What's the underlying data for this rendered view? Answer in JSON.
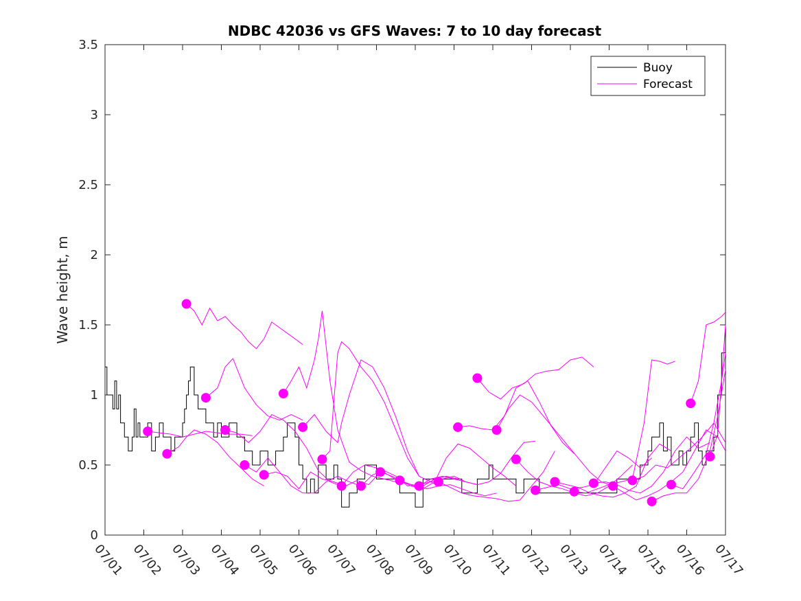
{
  "chart_data": {
    "type": "line",
    "title": "NDBC 42036 vs GFS Waves: 7 to 10 day forecast",
    "xlabel": "",
    "ylabel": "Wave height, m",
    "ylim": [
      0,
      3.5
    ],
    "yticks": [
      "0",
      "0.5",
      "1",
      "1.5",
      "2",
      "2.5",
      "3",
      "3.5"
    ],
    "xlim_days": [
      1,
      17
    ],
    "xticks": [
      "07/01",
      "07/02",
      "07/03",
      "07/04",
      "07/05",
      "07/06",
      "07/07",
      "07/08",
      "07/09",
      "07/10",
      "07/11",
      "07/12",
      "07/13",
      "07/14",
      "07/15",
      "07/16",
      "07/17"
    ],
    "legend": {
      "position": "top-right",
      "entries": [
        {
          "label": "Buoy",
          "color": "#000000"
        },
        {
          "label": "Forecast",
          "color": "#ff00ff"
        }
      ]
    },
    "colors": {
      "buoy": "#000000",
      "forecast": "#ff00ff"
    },
    "buoy": {
      "name": "Buoy",
      "x": [
        1.0,
        1.05,
        1.1,
        1.2,
        1.25,
        1.3,
        1.35,
        1.4,
        1.5,
        1.6,
        1.7,
        1.75,
        1.8,
        1.85,
        1.9,
        2.0,
        2.1,
        2.2,
        2.3,
        2.4,
        2.5,
        2.6,
        2.7,
        2.8,
        2.9,
        3.0,
        3.05,
        3.1,
        3.15,
        3.2,
        3.3,
        3.4,
        3.5,
        3.6,
        3.7,
        3.8,
        3.9,
        4.0,
        4.2,
        4.4,
        4.6,
        4.8,
        5.0,
        5.2,
        5.4,
        5.6,
        5.7,
        5.8,
        5.9,
        6.0,
        6.1,
        6.2,
        6.3,
        6.4,
        6.5,
        6.6,
        6.7,
        6.8,
        6.9,
        7.0,
        7.1,
        7.2,
        7.3,
        7.4,
        7.5,
        7.6,
        7.7,
        7.8,
        8.0,
        8.2,
        8.4,
        8.6,
        8.8,
        9.0,
        9.2,
        9.4,
        9.6,
        9.8,
        10.0,
        10.2,
        10.4,
        10.6,
        10.8,
        10.9,
        11.0,
        11.2,
        11.4,
        11.6,
        11.8,
        12.0,
        12.2,
        12.4,
        12.6,
        12.8,
        13.0,
        13.2,
        13.4,
        13.6,
        13.8,
        14.0,
        14.2,
        14.4,
        14.6,
        14.8,
        15.0,
        15.1,
        15.2,
        15.3,
        15.4,
        15.5,
        15.6,
        15.7,
        15.8,
        15.9,
        16.0,
        16.1,
        16.2,
        16.3,
        16.4,
        16.5,
        16.6,
        16.7,
        16.8,
        16.9,
        17.0
      ],
      "y": [
        1.2,
        1.0,
        1.0,
        0.9,
        1.1,
        0.9,
        1.0,
        0.8,
        0.7,
        0.6,
        0.7,
        0.9,
        0.7,
        0.8,
        0.7,
        0.7,
        0.8,
        0.6,
        0.7,
        0.8,
        0.7,
        0.7,
        0.6,
        0.7,
        0.7,
        0.8,
        0.9,
        1.0,
        1.1,
        1.2,
        1.0,
        0.9,
        0.9,
        0.8,
        0.8,
        0.7,
        0.8,
        0.7,
        0.8,
        0.7,
        0.6,
        0.5,
        0.6,
        0.5,
        0.6,
        0.7,
        0.8,
        0.8,
        0.7,
        0.5,
        0.4,
        0.3,
        0.4,
        0.3,
        0.5,
        0.5,
        0.4,
        0.4,
        0.5,
        0.4,
        0.2,
        0.2,
        0.3,
        0.3,
        0.4,
        0.4,
        0.5,
        0.5,
        0.4,
        0.4,
        0.4,
        0.3,
        0.3,
        0.2,
        0.4,
        0.4,
        0.4,
        0.4,
        0.4,
        0.3,
        0.3,
        0.4,
        0.4,
        0.5,
        0.4,
        0.4,
        0.4,
        0.3,
        0.4,
        0.4,
        0.3,
        0.3,
        0.3,
        0.3,
        0.3,
        0.3,
        0.3,
        0.3,
        0.3,
        0.3,
        0.4,
        0.4,
        0.4,
        0.5,
        0.6,
        0.7,
        0.7,
        0.8,
        0.6,
        0.7,
        0.5,
        0.5,
        0.6,
        0.5,
        0.6,
        0.7,
        0.8,
        0.6,
        0.5,
        0.6,
        0.6,
        0.7,
        1.0,
        1.3,
        1.5
      ]
    },
    "forecast_series": [
      {
        "x": [
          2.1,
          2.4,
          2.7,
          3.0,
          3.3,
          3.6,
          3.9,
          4.2,
          4.5,
          4.8
        ],
        "y": [
          0.74,
          0.73,
          0.72,
          0.7,
          0.72,
          0.74,
          0.73,
          0.72,
          0.72,
          0.71
        ]
      },
      {
        "x": [
          2.6,
          2.9,
          3.1,
          3.3,
          3.6,
          3.9,
          4.2,
          4.5,
          4.8,
          5.1
        ],
        "y": [
          0.58,
          0.63,
          0.7,
          0.75,
          0.72,
          0.66,
          0.56,
          0.48,
          0.4,
          0.35
        ]
      },
      {
        "x": [
          3.1,
          3.3,
          3.5,
          3.7,
          3.9,
          4.1,
          4.3,
          4.5,
          4.7,
          4.9,
          5.1,
          5.3,
          5.5,
          5.7,
          5.9,
          6.1
        ],
        "y": [
          1.65,
          1.6,
          1.5,
          1.62,
          1.53,
          1.56,
          1.5,
          1.45,
          1.38,
          1.33,
          1.4,
          1.52,
          1.48,
          1.44,
          1.4,
          1.36
        ]
      },
      {
        "x": [
          3.6,
          3.9,
          4.1,
          4.3,
          4.6,
          4.9,
          5.2,
          5.5,
          5.8,
          6.1
        ],
        "y": [
          0.98,
          1.05,
          1.2,
          1.26,
          1.05,
          0.93,
          0.85,
          0.82,
          0.86,
          0.82
        ]
      },
      {
        "x": [
          4.1,
          4.4,
          4.7,
          5.0,
          5.3,
          5.6,
          5.9,
          6.2,
          6.5,
          6.8,
          7.1
        ],
        "y": [
          0.75,
          0.73,
          0.66,
          0.74,
          0.86,
          0.82,
          0.74,
          0.62,
          0.46,
          0.38,
          0.35
        ]
      },
      {
        "x": [
          4.6,
          4.9,
          5.2,
          5.5,
          5.8,
          6.1,
          6.4,
          6.7,
          7.0,
          7.3,
          7.6
        ],
        "y": [
          0.5,
          0.45,
          0.55,
          0.45,
          0.35,
          0.3,
          0.3,
          0.38,
          0.42,
          0.38,
          0.35
        ]
      },
      {
        "x": [
          5.1,
          5.4,
          5.7,
          6.0,
          6.3,
          6.6,
          6.9,
          7.2,
          7.5,
          7.8,
          8.1
        ],
        "y": [
          0.43,
          0.45,
          0.42,
          0.33,
          0.45,
          0.4,
          0.38,
          0.35,
          0.39,
          0.36,
          0.45
        ]
      },
      {
        "x": [
          5.6,
          5.8,
          6.0,
          6.2,
          6.4,
          6.5,
          6.6,
          6.8,
          7.0,
          7.3,
          7.6,
          7.9,
          8.2,
          8.5
        ],
        "y": [
          1.01,
          1.1,
          1.2,
          1.05,
          1.25,
          1.4,
          1.6,
          1.1,
          0.75,
          0.52,
          0.46,
          0.42,
          0.4,
          0.38
        ]
      },
      {
        "x": [
          6.1,
          6.4,
          6.7,
          7.0,
          7.1,
          7.3,
          7.6,
          7.9,
          8.2,
          8.5,
          8.8,
          9.1
        ],
        "y": [
          0.77,
          0.86,
          0.74,
          0.66,
          0.8,
          1.0,
          1.25,
          1.2,
          1.05,
          0.84,
          0.6,
          0.42
        ]
      },
      {
        "x": [
          6.6,
          6.8,
          7.0,
          7.1,
          7.3,
          7.6,
          7.9,
          8.2,
          8.5,
          8.8,
          9.1,
          9.4,
          9.6
        ],
        "y": [
          0.54,
          0.6,
          1.3,
          1.38,
          1.33,
          1.2,
          1.1,
          0.95,
          0.75,
          0.55,
          0.42,
          0.38,
          0.35
        ]
      },
      {
        "x": [
          7.1,
          7.4,
          7.7,
          8.0,
          8.3,
          8.6,
          8.9,
          9.2,
          9.5,
          9.8,
          10.1
        ],
        "y": [
          0.35,
          0.45,
          0.5,
          0.48,
          0.43,
          0.38,
          0.36,
          0.35,
          0.4,
          0.42,
          0.4
        ]
      },
      {
        "x": [
          7.6,
          7.9,
          8.2,
          8.5,
          8.8,
          9.1,
          9.4,
          9.7,
          10.0,
          10.3,
          10.6
        ],
        "y": [
          0.35,
          0.43,
          0.46,
          0.42,
          0.35,
          0.36,
          0.38,
          0.4,
          0.42,
          0.38,
          0.36
        ]
      },
      {
        "x": [
          8.1,
          8.4,
          8.7,
          9.0,
          9.3,
          9.6,
          9.9,
          10.2,
          10.5,
          10.8,
          11.1
        ],
        "y": [
          0.45,
          0.42,
          0.38,
          0.35,
          0.33,
          0.35,
          0.36,
          0.33,
          0.3,
          0.28,
          0.3
        ]
      },
      {
        "x": [
          8.6,
          8.9,
          9.2,
          9.5,
          9.8,
          10.1,
          10.4,
          10.7,
          11.0,
          11.3,
          11.6
        ],
        "y": [
          0.39,
          0.35,
          0.33,
          0.38,
          0.55,
          0.65,
          0.62,
          0.55,
          0.48,
          0.42,
          0.35
        ]
      },
      {
        "x": [
          9.1,
          9.4,
          9.7,
          10.0,
          10.3,
          10.6,
          10.9,
          11.2,
          11.5,
          11.8,
          12.1
        ],
        "y": [
          0.35,
          0.4,
          0.42,
          0.4,
          0.38,
          0.36,
          0.38,
          0.44,
          0.56,
          0.66,
          0.67
        ]
      },
      {
        "x": [
          9.6,
          9.9,
          10.2,
          10.5,
          10.8,
          11.1,
          11.4,
          11.7,
          12.0,
          12.3,
          12.6
        ],
        "y": [
          0.38,
          0.34,
          0.3,
          0.28,
          0.27,
          0.26,
          0.24,
          0.25,
          0.35,
          0.45,
          0.6
        ]
      },
      {
        "x": [
          10.1,
          10.4,
          10.7,
          11.0,
          11.3,
          11.6,
          11.9,
          12.2,
          12.5,
          12.8,
          13.1
        ],
        "y": [
          0.77,
          0.78,
          0.76,
          0.75,
          0.85,
          1.05,
          1.1,
          0.95,
          0.78,
          0.66,
          0.58
        ]
      },
      {
        "x": [
          10.6,
          10.9,
          11.2,
          11.5,
          11.8,
          12.1,
          12.4,
          12.7,
          13.0,
          13.3,
          13.6
        ],
        "y": [
          1.12,
          1.02,
          0.97,
          1.05,
          1.08,
          1.15,
          1.17,
          1.18,
          1.25,
          1.27,
          1.2
        ]
      },
      {
        "x": [
          11.1,
          11.4,
          11.7,
          12.0,
          12.3,
          12.6,
          12.9,
          13.2,
          13.5,
          13.8,
          14.1
        ],
        "y": [
          0.75,
          0.9,
          1.0,
          0.95,
          0.85,
          0.75,
          0.65,
          0.55,
          0.45,
          0.38,
          0.35
        ]
      },
      {
        "x": [
          11.6,
          11.9,
          12.2,
          12.5,
          12.8,
          13.1,
          13.4,
          13.7,
          14.0,
          14.3,
          14.6
        ],
        "y": [
          0.54,
          0.45,
          0.38,
          0.35,
          0.33,
          0.3,
          0.28,
          0.3,
          0.35,
          0.42,
          0.5
        ]
      },
      {
        "x": [
          12.1,
          12.4,
          12.7,
          13.0,
          13.3,
          13.6,
          13.9,
          14.2,
          14.5,
          14.8,
          15.1
        ],
        "y": [
          0.32,
          0.34,
          0.36,
          0.33,
          0.34,
          0.36,
          0.48,
          0.6,
          0.55,
          0.48,
          0.55
        ]
      },
      {
        "x": [
          12.6,
          12.9,
          13.2,
          13.5,
          13.8,
          14.1,
          14.4,
          14.7,
          15.0,
          15.3,
          15.6
        ],
        "y": [
          0.38,
          0.36,
          0.34,
          0.3,
          0.28,
          0.27,
          0.3,
          0.35,
          0.55,
          0.65,
          0.6
        ]
      },
      {
        "x": [
          13.1,
          13.4,
          13.7,
          14.0,
          14.3,
          14.6,
          14.9,
          15.1,
          15.3,
          15.5,
          15.7
        ],
        "y": [
          0.31,
          0.3,
          0.33,
          0.36,
          0.38,
          0.4,
          0.8,
          1.25,
          1.24,
          1.22,
          1.24
        ]
      },
      {
        "x": [
          13.6,
          13.9,
          14.2,
          14.5,
          14.8,
          15.1,
          15.4,
          15.7,
          16.0,
          16.3,
          16.6
        ],
        "y": [
          0.37,
          0.38,
          0.36,
          0.32,
          0.3,
          0.35,
          0.45,
          0.6,
          0.7,
          0.62,
          0.66
        ]
      },
      {
        "x": [
          14.1,
          14.4,
          14.7,
          15.0,
          15.3,
          15.6,
          15.9,
          16.2,
          16.5,
          16.8,
          17.0
        ],
        "y": [
          0.35,
          0.3,
          0.25,
          0.28,
          0.32,
          0.38,
          0.45,
          0.6,
          0.75,
          0.7,
          0.6
        ]
      },
      {
        "x": [
          14.6,
          14.9,
          15.2,
          15.5,
          15.8,
          16.1,
          16.4,
          16.7,
          17.0
        ],
        "y": [
          0.39,
          0.42,
          0.5,
          0.48,
          0.55,
          0.62,
          0.7,
          0.8,
          0.66
        ]
      },
      {
        "x": [
          15.1,
          15.4,
          15.7,
          16.0,
          16.3,
          16.6,
          16.8,
          17.0
        ],
        "y": [
          0.24,
          0.28,
          0.3,
          0.3,
          0.4,
          0.6,
          0.85,
          1.18
        ]
      },
      {
        "x": [
          15.6,
          15.9,
          16.2,
          16.5,
          16.7,
          16.9,
          17.0
        ],
        "y": [
          0.36,
          0.33,
          0.45,
          0.58,
          0.8,
          1.1,
          1.3
        ]
      },
      {
        "x": [
          16.1,
          16.3,
          16.5,
          16.7,
          16.9,
          17.0
        ],
        "y": [
          0.94,
          1.1,
          1.5,
          1.52,
          1.56,
          1.59
        ]
      },
      {
        "x": [
          16.6,
          16.8,
          17.0
        ],
        "y": [
          0.56,
          0.72,
          1.5
        ]
      }
    ]
  }
}
